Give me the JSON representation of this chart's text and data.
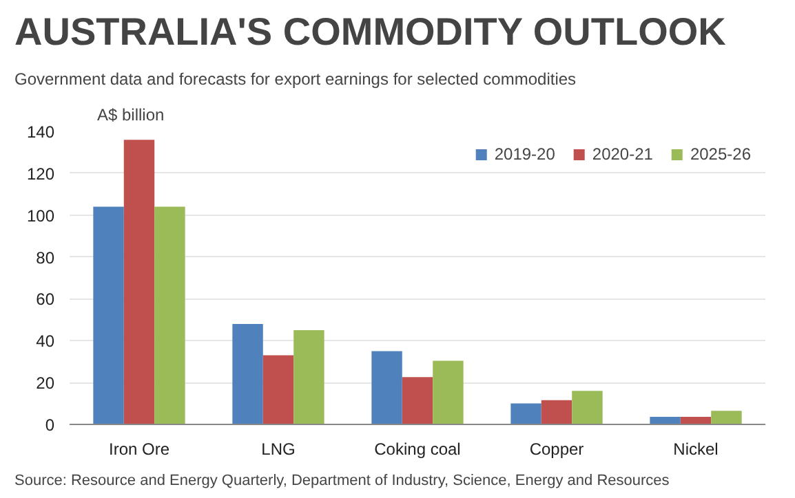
{
  "chart_data": {
    "type": "bar",
    "title": "AUSTRALIA'S  COMMODITY OUTLOOK",
    "subtitle": "Government  data and forecasts for  export earnings  for  selected commodities",
    "ylabel": "A$ billion",
    "categories": [
      "Iron Ore",
      "LNG",
      "Coking coal",
      "Copper",
      "Nickel"
    ],
    "series": [
      {
        "name": "2019-20",
        "color": "#4f81bd",
        "values": [
          104,
          48,
          35,
          10,
          3.6
        ]
      },
      {
        "name": "2020-21",
        "color": "#c0504d",
        "values": [
          136,
          33,
          22.6,
          11.6,
          3.6
        ]
      },
      {
        "name": "2025-26",
        "color": "#9bbb59",
        "values": [
          104,
          45,
          30.4,
          16,
          6.5
        ]
      }
    ],
    "ylim": [
      0,
      140
    ],
    "yticks": [
      0,
      20,
      40,
      60,
      80,
      100,
      120,
      140
    ],
    "grid": "y",
    "legend": "top right",
    "annotations": [
      "Source: Resource and Energy Quarterly, Department of Industry, Science, Energy and Resources"
    ]
  }
}
